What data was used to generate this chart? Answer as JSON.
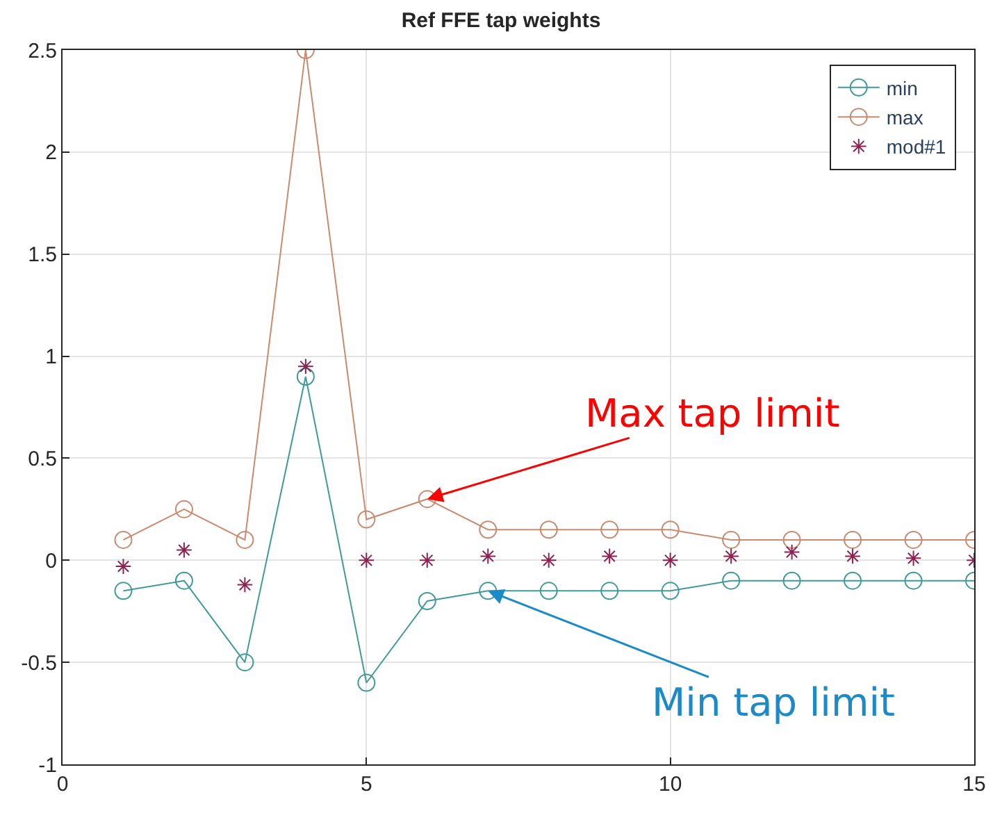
{
  "chart_data": {
    "type": "line",
    "title": "Ref FFE tap weights",
    "x": [
      1,
      2,
      3,
      4,
      5,
      6,
      7,
      8,
      9,
      10,
      11,
      12,
      13,
      14,
      15
    ],
    "series": [
      {
        "name": "min",
        "color": "#3f9a98",
        "values": [
          -0.15,
          -0.1,
          -0.5,
          0.9,
          -0.6,
          -0.2,
          -0.15,
          -0.15,
          -0.15,
          -0.15,
          -0.1,
          -0.1,
          -0.1,
          -0.1,
          -0.1
        ],
        "marker": "circle"
      },
      {
        "name": "max",
        "color": "#c98a70",
        "values": [
          0.1,
          0.25,
          0.1,
          2.5,
          0.2,
          0.3,
          0.15,
          0.15,
          0.15,
          0.15,
          0.1,
          0.1,
          0.1,
          0.1,
          0.1
        ],
        "marker": "circle"
      },
      {
        "name": "mod#1",
        "color": "#8b2252",
        "type": "scatter",
        "values": [
          -0.03,
          0.05,
          -0.12,
          0.95,
          0,
          0,
          0.02,
          0,
          0.02,
          0,
          0.02,
          0.04,
          0.02,
          0.01,
          0
        ],
        "marker": "cross"
      }
    ],
    "xlim": [
      0,
      15
    ],
    "xticks": [
      0,
      5,
      10,
      15
    ],
    "ylim": [
      -1,
      2.5
    ],
    "yticks": [
      -1,
      -0.5,
      0,
      0.5,
      1,
      1.5,
      2,
      2.5
    ],
    "grid": true,
    "legend": "top right",
    "annotations": [
      {
        "text": "Max tap limit",
        "x": 6,
        "y": 0.3
      },
      {
        "text": "Min tap limit",
        "x": 7,
        "y": -0.15
      }
    ]
  }
}
